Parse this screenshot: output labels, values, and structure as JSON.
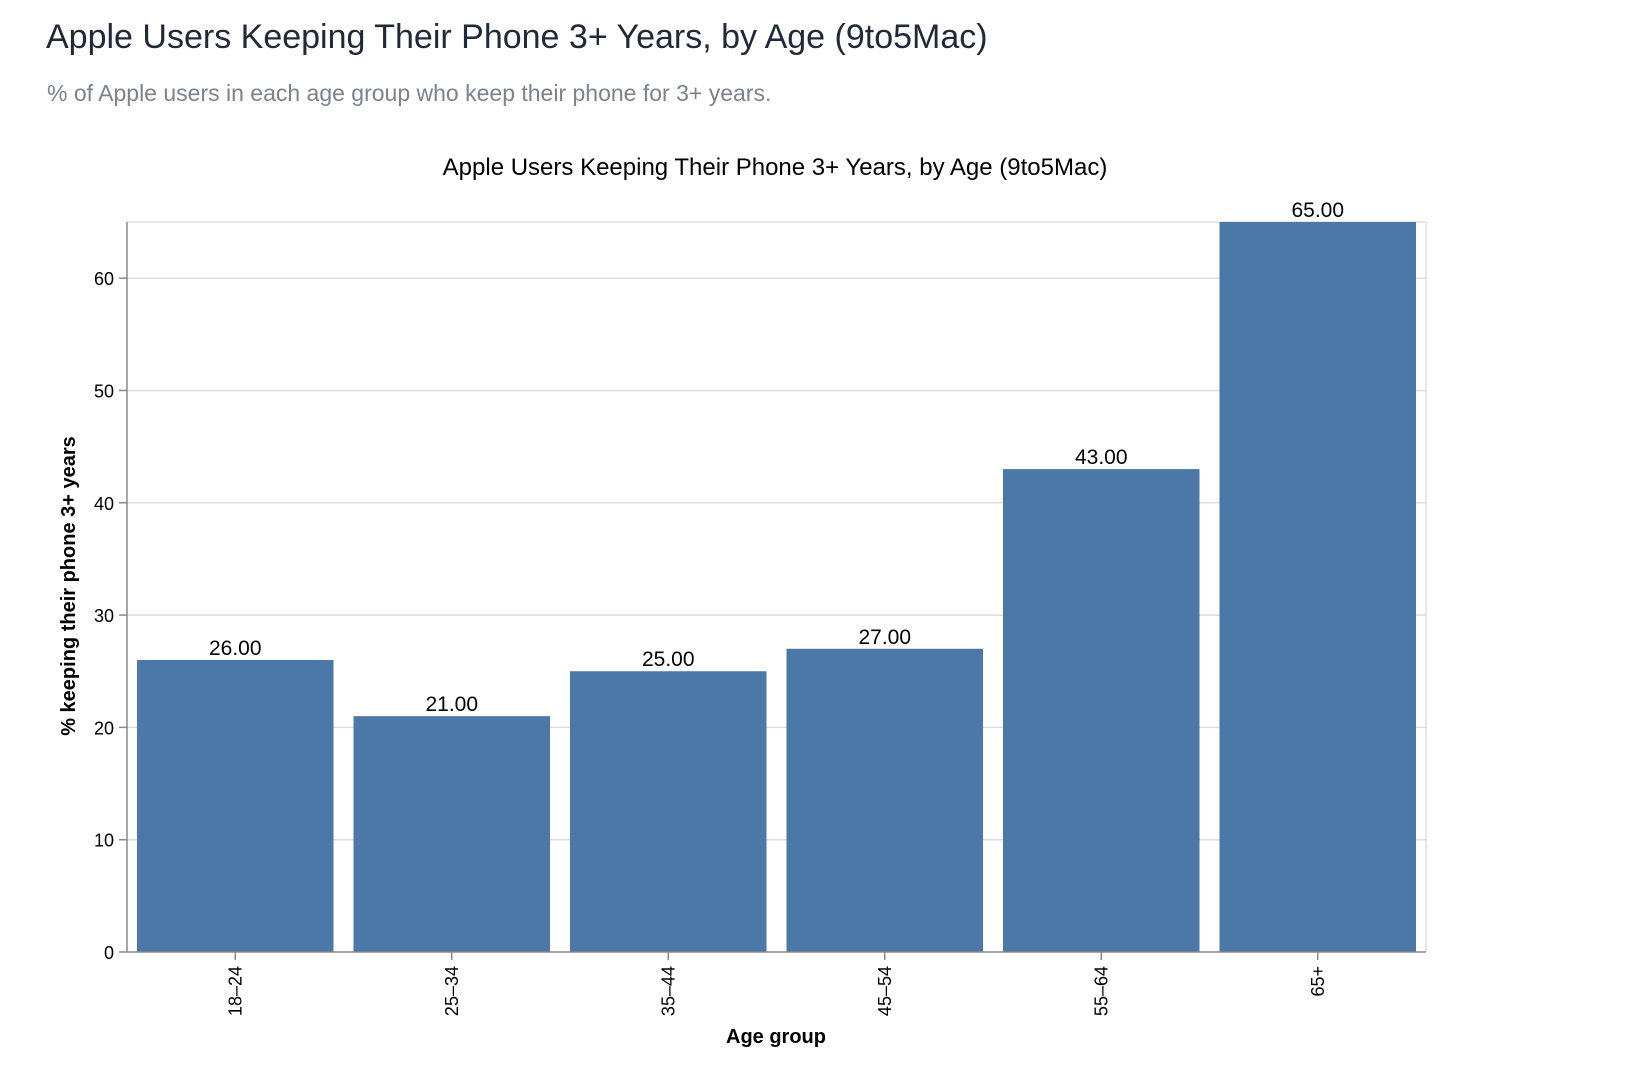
{
  "page": {
    "title": "Apple Users Keeping Their Phone 3+ Years, by Age (9to5Mac)",
    "subtitle": "% of Apple users in each age group who keep their phone for 3+ years."
  },
  "chart_data": {
    "type": "bar",
    "title": "Apple Users Keeping Their Phone 3+ Years, by Age (9to5Mac)",
    "xlabel": "Age group",
    "ylabel": "% keeping their phone 3+ years",
    "categories": [
      "18–24",
      "25–34",
      "35–44",
      "45–54",
      "55–64",
      "65+"
    ],
    "values": [
      26,
      21,
      25,
      27,
      43,
      65
    ],
    "value_labels": [
      "26.00",
      "21.00",
      "25.00",
      "27.00",
      "43.00",
      "65.00"
    ],
    "ylim": [
      0,
      65
    ],
    "yticks": [
      0,
      10,
      20,
      30,
      40,
      50,
      60
    ],
    "grid": true,
    "bar_color": "#4c78a8",
    "grid_color": "#dddddd",
    "axis_color": "#888888"
  }
}
